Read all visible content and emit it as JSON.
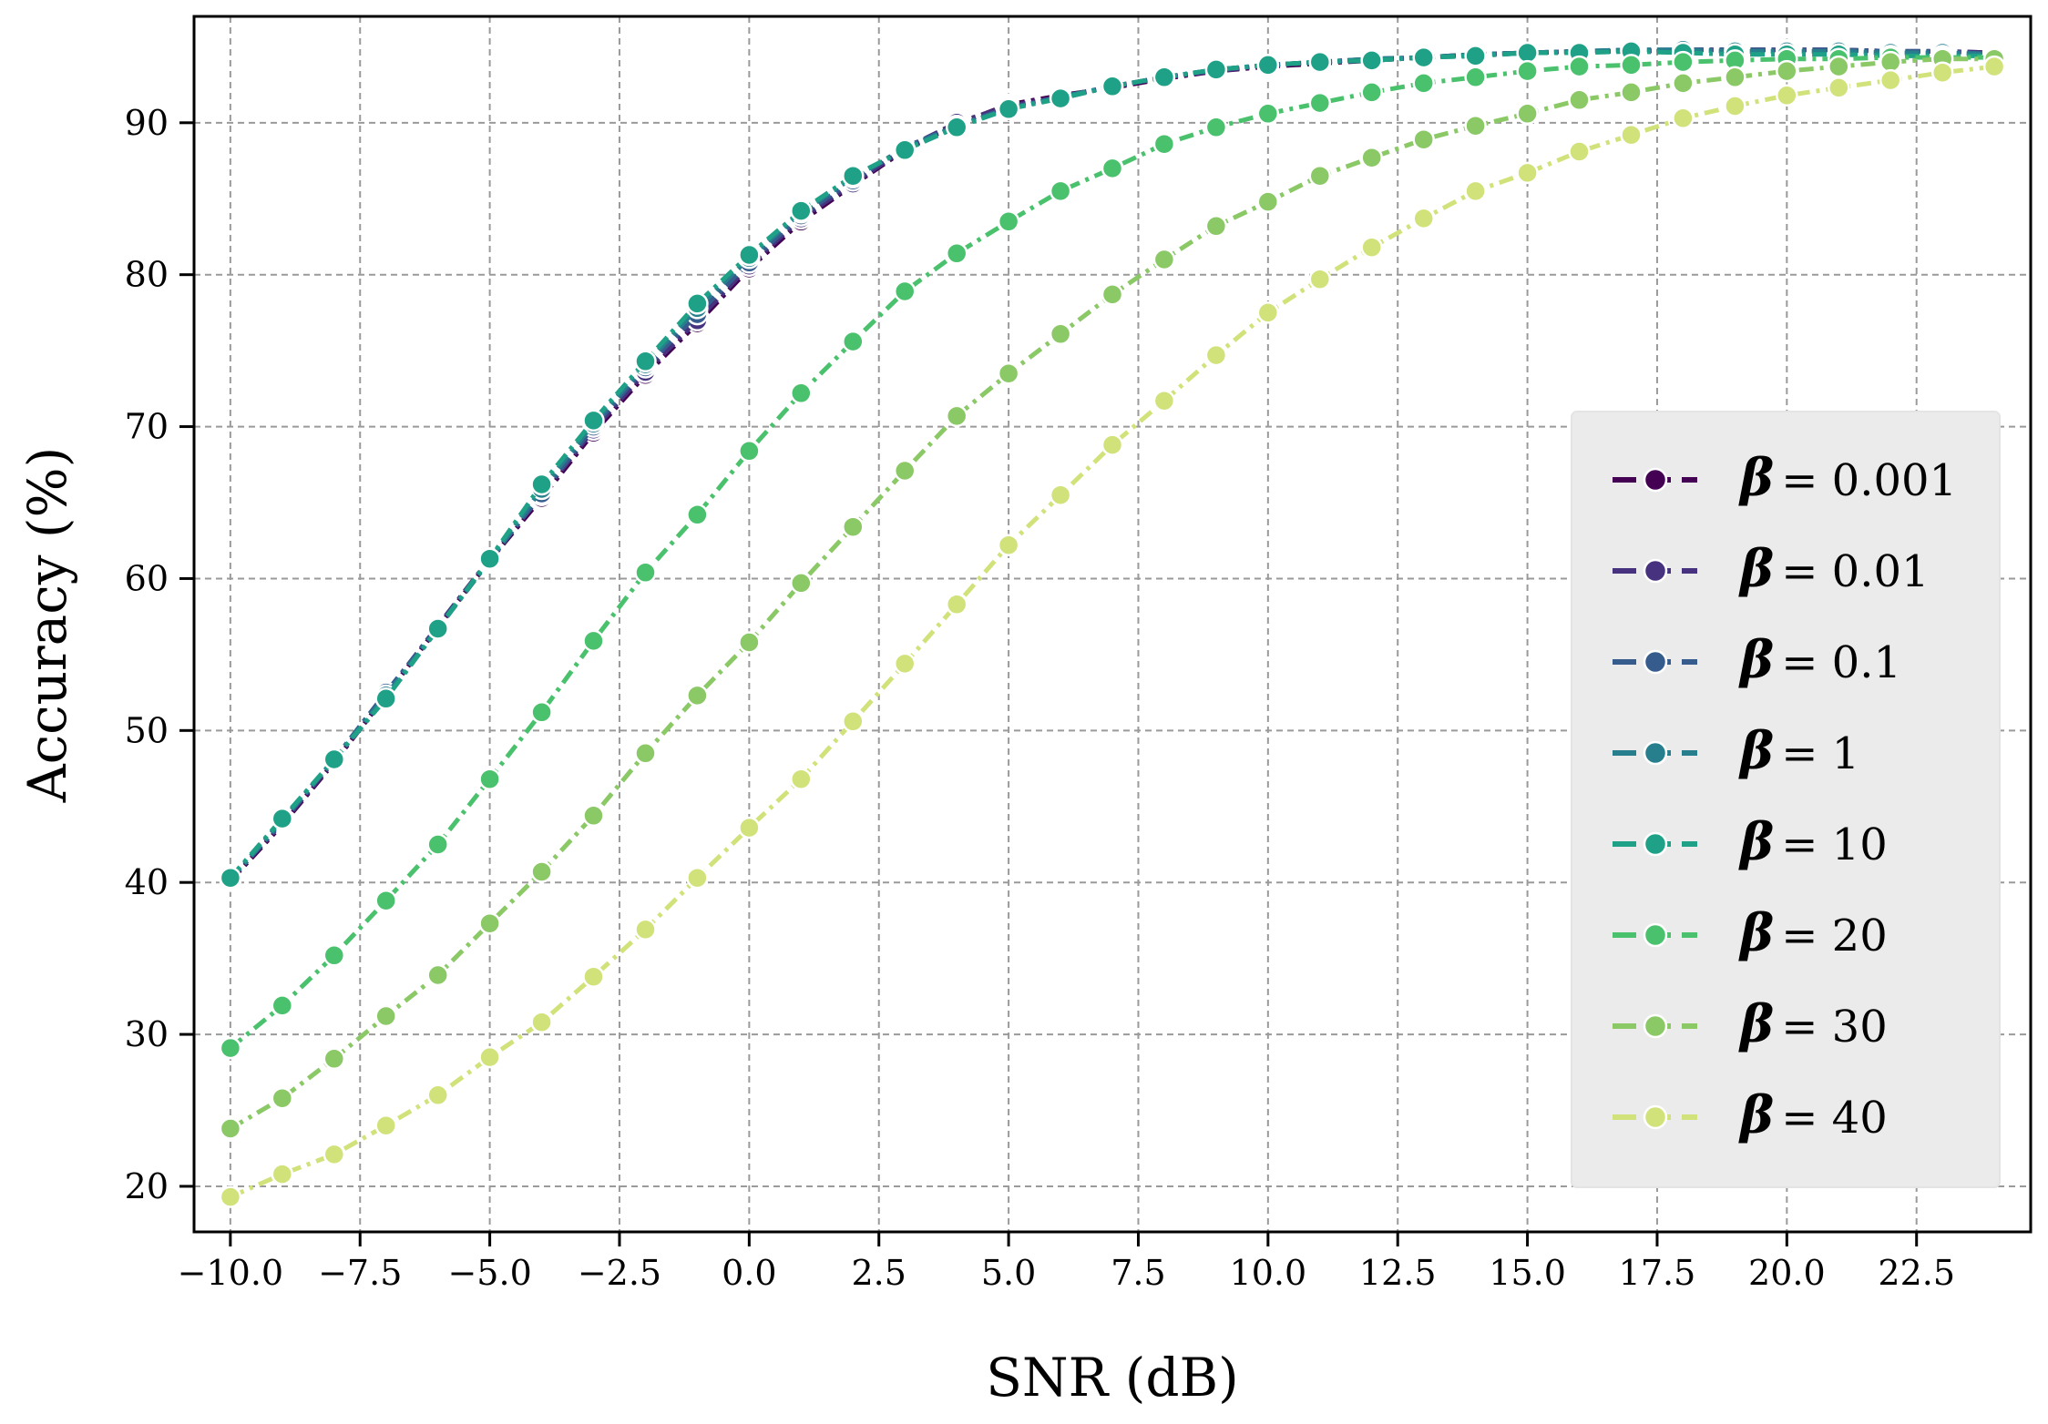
{
  "chart_data": {
    "type": "line",
    "xlabel": "SNR (dB)",
    "ylabel": "Accuracy (%)",
    "xlim": [
      -10.7,
      24.7
    ],
    "ylim": [
      17,
      97
    ],
    "xticks": [
      -10.0,
      -7.5,
      -5.0,
      -2.5,
      0.0,
      2.5,
      5.0,
      7.5,
      10.0,
      12.5,
      15.0,
      17.5,
      20.0,
      22.5
    ],
    "xtick_labels": [
      "−10.0",
      "−7.5",
      "−5.0",
      "−2.5",
      "0.0",
      "2.5",
      "5.0",
      "7.5",
      "10.0",
      "12.5",
      "15.0",
      "17.5",
      "20.0",
      "22.5"
    ],
    "yticks": [
      20,
      30,
      40,
      50,
      60,
      70,
      80,
      90
    ],
    "ytick_labels": [
      "20",
      "30",
      "40",
      "50",
      "60",
      "70",
      "80",
      "90"
    ],
    "grid": true,
    "legend_position": "right",
    "legend_symbol": "β",
    "x": [
      -10,
      -9,
      -8,
      -7,
      -6,
      -5,
      -4,
      -3,
      -2,
      -1,
      0,
      1,
      2,
      3,
      4,
      5,
      6,
      7,
      8,
      9,
      10,
      11,
      12,
      13,
      14,
      15,
      16,
      17,
      18,
      19,
      20,
      21,
      22,
      23,
      24
    ],
    "series": [
      {
        "name": "= 0.001",
        "color": "#440154",
        "values": [
          40.1,
          43.8,
          47.9,
          52.3,
          56.8,
          61.2,
          65.3,
          69.6,
          73.4,
          76.8,
          80.4,
          83.5,
          85.9,
          88.2,
          89.9,
          91.2,
          91.8,
          92.3,
          92.9,
          93.4,
          93.7,
          93.9,
          94.1,
          94.3,
          94.5,
          94.6,
          94.7,
          94.7,
          94.8,
          94.8,
          94.8,
          94.8,
          94.7,
          94.7,
          94.6
        ]
      },
      {
        "name": "= 0.01",
        "color": "#46327e",
        "values": [
          40.2,
          43.9,
          48.0,
          52.4,
          56.9,
          61.3,
          65.5,
          69.8,
          73.6,
          77.0,
          80.6,
          83.7,
          86.0,
          88.3,
          90.0,
          91.1,
          91.7,
          92.4,
          93.0,
          93.4,
          93.8,
          94.0,
          94.2,
          94.3,
          94.5,
          94.6,
          94.7,
          94.7,
          94.8,
          94.8,
          94.8,
          94.8,
          94.7,
          94.7,
          94.6
        ]
      },
      {
        "name": "= 0.1",
        "color": "#365c8d",
        "values": [
          40.2,
          44.0,
          48.1,
          52.5,
          56.8,
          61.2,
          65.6,
          70.0,
          73.9,
          77.4,
          80.8,
          83.9,
          86.2,
          88.4,
          89.8,
          91.0,
          91.6,
          92.4,
          93.0,
          93.5,
          93.8,
          94.0,
          94.1,
          94.3,
          94.4,
          94.6,
          94.7,
          94.8,
          94.8,
          94.8,
          94.8,
          94.8,
          94.7,
          94.7,
          94.5
        ]
      },
      {
        "name": "= 1",
        "color": "#277f8e",
        "values": [
          40.2,
          44.1,
          48.1,
          52.3,
          56.7,
          61.2,
          65.9,
          70.2,
          74.1,
          77.8,
          81.1,
          84.1,
          86.4,
          88.3,
          89.8,
          90.9,
          91.7,
          92.4,
          93.0,
          93.5,
          93.8,
          94.0,
          94.2,
          94.3,
          94.5,
          94.6,
          94.7,
          94.8,
          94.8,
          94.7,
          94.7,
          94.7,
          94.6,
          94.6,
          94.5
        ]
      },
      {
        "name": "= 10",
        "color": "#1fa187",
        "values": [
          40.3,
          44.2,
          48.1,
          52.1,
          56.7,
          61.3,
          66.2,
          70.4,
          74.3,
          78.1,
          81.3,
          84.2,
          86.5,
          88.2,
          89.7,
          90.9,
          91.6,
          92.4,
          93.0,
          93.5,
          93.8,
          94.0,
          94.1,
          94.3,
          94.4,
          94.6,
          94.6,
          94.7,
          94.6,
          94.5,
          94.5,
          94.5,
          94.4,
          94.4,
          94.4
        ]
      },
      {
        "name": "= 20",
        "color": "#4ac16d",
        "values": [
          29.1,
          31.9,
          35.2,
          38.8,
          42.5,
          46.8,
          51.2,
          55.9,
          60.4,
          64.2,
          68.4,
          72.2,
          75.6,
          78.9,
          81.4,
          83.5,
          85.5,
          87.0,
          88.6,
          89.7,
          90.6,
          91.3,
          92.0,
          92.6,
          93.0,
          93.4,
          93.7,
          93.8,
          94.0,
          94.1,
          94.2,
          94.2,
          94.3,
          94.3,
          94.3
        ]
      },
      {
        "name": "= 30",
        "color": "#8bc866",
        "values": [
          23.8,
          25.8,
          28.4,
          31.2,
          33.9,
          37.3,
          40.7,
          44.4,
          48.5,
          52.3,
          55.8,
          59.7,
          63.4,
          67.1,
          70.7,
          73.5,
          76.1,
          78.7,
          81.0,
          83.2,
          84.8,
          86.5,
          87.7,
          88.9,
          89.8,
          90.6,
          91.5,
          92.0,
          92.6,
          93.0,
          93.4,
          93.7,
          94.0,
          94.2,
          94.2
        ]
      },
      {
        "name": "= 40",
        "color": "#d2e27a",
        "values": [
          19.3,
          20.8,
          22.1,
          24.0,
          26.0,
          28.5,
          30.8,
          33.8,
          36.9,
          40.3,
          43.6,
          46.8,
          50.6,
          54.4,
          58.3,
          62.2,
          65.5,
          68.8,
          71.7,
          74.7,
          77.5,
          79.7,
          81.8,
          83.7,
          85.5,
          86.7,
          88.1,
          89.2,
          90.3,
          91.1,
          91.8,
          92.3,
          92.8,
          93.3,
          93.7
        ]
      }
    ]
  }
}
